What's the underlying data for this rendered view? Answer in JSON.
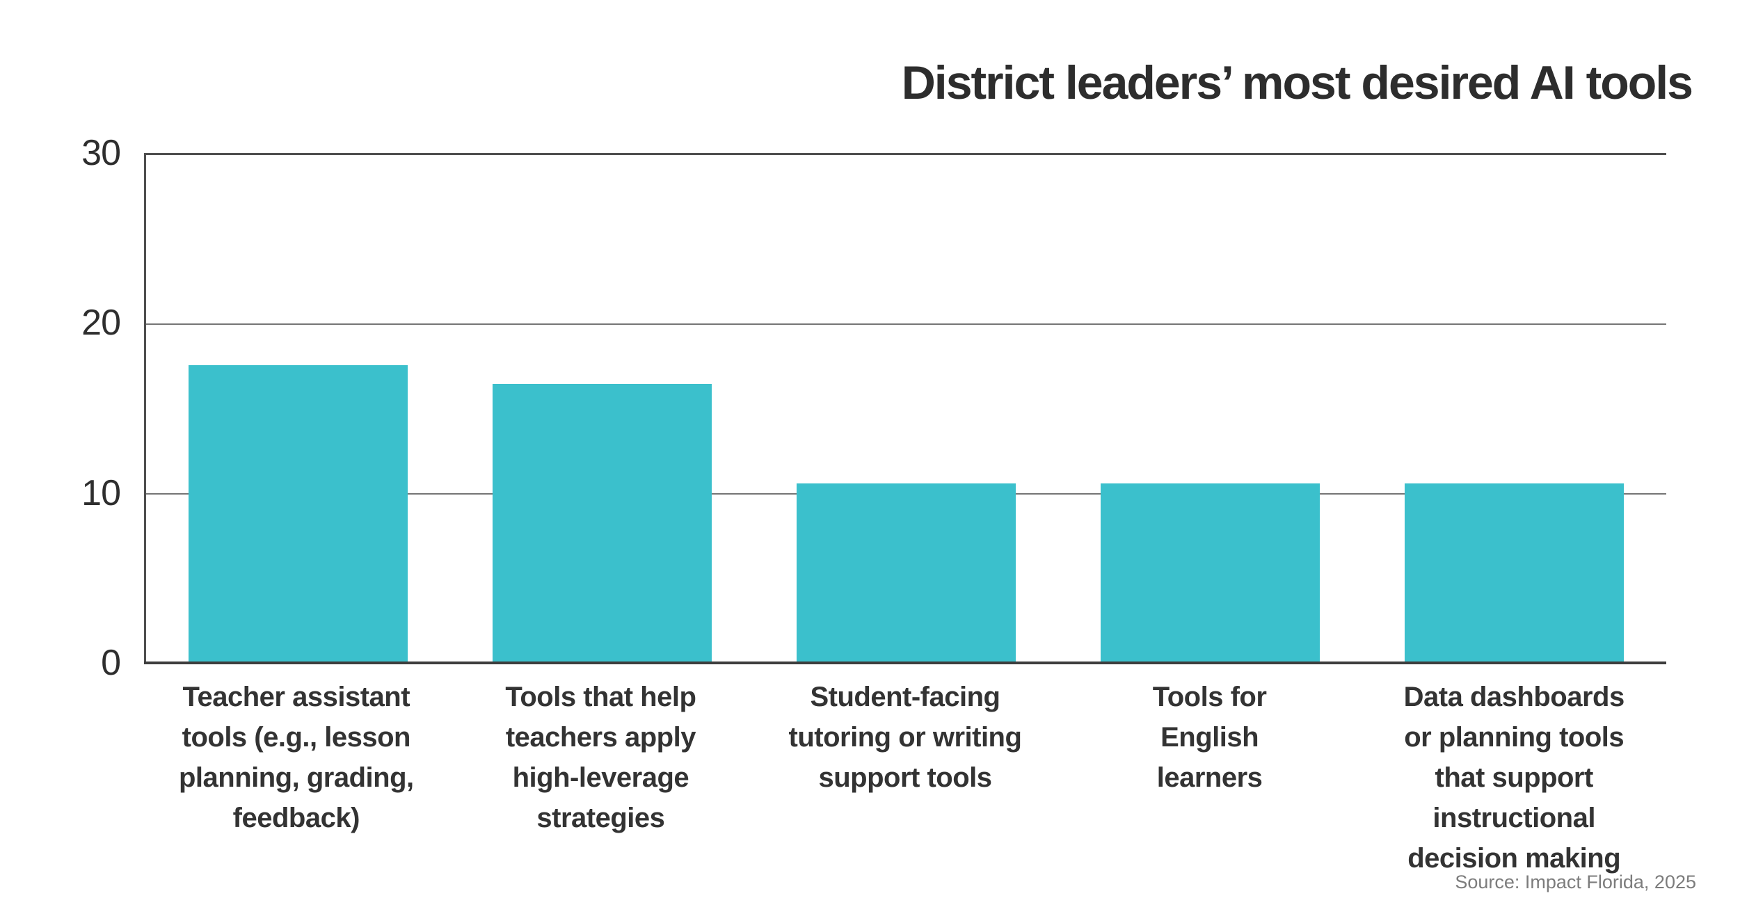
{
  "title": "District leaders’ most desired AI tools",
  "source": "Source: Impact Florida, 2025",
  "colors": {
    "bar": "#3BC0CC",
    "title_text": "#2d2d2d",
    "tick_text": "#2e2e2e",
    "label_text": "#333333",
    "grid_line": "#757575",
    "spine": "#4f4f4f",
    "baseline": "#3d3d3d",
    "source_text": "#7c7c7c",
    "background": "#ffffff"
  },
  "y_axis": {
    "tick_labels": [
      "30",
      "20",
      "10",
      "0"
    ]
  },
  "chart_data": {
    "type": "bar",
    "title": "District leaders’ most desired AI tools",
    "categories": [
      "Teacher assistant tools (e.g., lesson planning, grading, feedback)",
      "Tools that help teachers apply high-leverage strategies",
      "Student-facing tutoring or writing support tools",
      "Tools for English learners",
      "Data dashboards or planning tools that support instructional decision making"
    ],
    "values": [
      17.6,
      16.5,
      10.6,
      10.6,
      10.6
    ],
    "xlabel": "",
    "ylabel": "",
    "ylim": [
      0,
      30
    ],
    "yticks": [
      0,
      10,
      20,
      30
    ],
    "gridlines": "horizontal",
    "legend": "none",
    "bar_color": "#3BC0CC",
    "source_note": "Source: Impact Florida, 2025"
  },
  "category_labels_display": [
    "Teacher assistant\ntools (e.g., lesson\nplanning, grading,\nfeedback)",
    "Tools that help\nteachers apply\nhigh-leverage\nstrategies",
    "Student-facing\ntutoring or writing\nsupport tools",
    "Tools for\nEnglish\nlearners",
    "Data dashboards\nor planning tools\nthat support\ninstructional\ndecision making"
  ]
}
